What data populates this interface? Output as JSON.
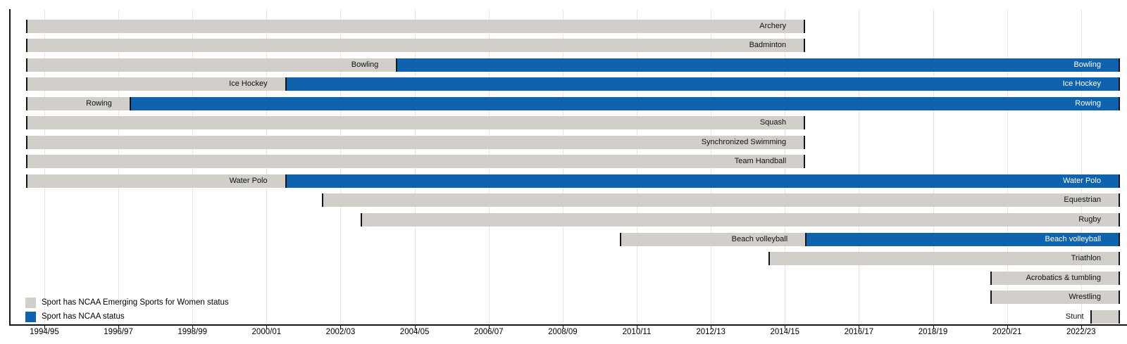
{
  "chart_data": {
    "type": "gantt-timeline",
    "title": "",
    "x_axis": {
      "min_year": 1994.05,
      "max_year": 2024.05,
      "grid": true,
      "ticks": [
        {
          "year": 1995,
          "label": "1994/95"
        },
        {
          "year": 1997,
          "label": "1996/97"
        },
        {
          "year": 1999,
          "label": "1998/99"
        },
        {
          "year": 2001,
          "label": "2000/01"
        },
        {
          "year": 2003,
          "label": "2002/03"
        },
        {
          "year": 2005,
          "label": "2004/05"
        },
        {
          "year": 2007,
          "label": "2006/07"
        },
        {
          "year": 2009,
          "label": "2008/09"
        },
        {
          "year": 2011,
          "label": "2010/11"
        },
        {
          "year": 2013,
          "label": "2012/13"
        },
        {
          "year": 2015,
          "label": "2014/15"
        },
        {
          "year": 2017,
          "label": "2016/17"
        },
        {
          "year": 2019,
          "label": "2018/19"
        },
        {
          "year": 2021,
          "label": "2020/21"
        },
        {
          "year": 2023,
          "label": "2022/23"
        }
      ]
    },
    "colors": {
      "esw": "#d2cfcb",
      "ncaa": "#0e62ae",
      "edge": "#161616",
      "gridline": "#e9e7e4",
      "ncaa_label_text": "#ffffff",
      "esw_label_text": "#111111"
    },
    "legend": [
      {
        "status": "esw",
        "color": "#d2cfcb",
        "label": "Sport has NCAA Emerging Sports for Women status"
      },
      {
        "status": "ncaa",
        "color": "#0e62ae",
        "label": "Sport has NCAA status"
      }
    ],
    "sports": [
      {
        "name": "Archery",
        "segments": [
          {
            "status": "esw",
            "start": 1994.5,
            "end": 2015.55
          }
        ]
      },
      {
        "name": "Badminton",
        "segments": [
          {
            "status": "esw",
            "start": 1994.5,
            "end": 2015.55
          }
        ]
      },
      {
        "name": "Bowling",
        "segments": [
          {
            "status": "esw",
            "start": 1994.5,
            "end": 2004.5
          },
          {
            "status": "ncaa",
            "start": 2004.5,
            "end": 2024.05
          }
        ]
      },
      {
        "name": "Ice Hockey",
        "segments": [
          {
            "status": "esw",
            "start": 1994.5,
            "end": 2001.5
          },
          {
            "status": "ncaa",
            "start": 2001.5,
            "end": 2024.05
          }
        ]
      },
      {
        "name": "Rowing",
        "segments": [
          {
            "status": "esw",
            "start": 1994.5,
            "end": 1997.3
          },
          {
            "status": "ncaa",
            "start": 1997.3,
            "end": 2024.05
          }
        ]
      },
      {
        "name": "Squash",
        "segments": [
          {
            "status": "esw",
            "start": 1994.5,
            "end": 2015.55
          }
        ]
      },
      {
        "name": "Synchronized Swimming",
        "segments": [
          {
            "status": "esw",
            "start": 1994.5,
            "end": 2015.55
          }
        ]
      },
      {
        "name": "Team Handball",
        "segments": [
          {
            "status": "esw",
            "start": 1994.5,
            "end": 2015.55
          }
        ]
      },
      {
        "name": "Water Polo",
        "segments": [
          {
            "status": "esw",
            "start": 1994.5,
            "end": 2001.5
          },
          {
            "status": "ncaa",
            "start": 2001.5,
            "end": 2024.05
          }
        ]
      },
      {
        "name": "Equestrian",
        "segments": [
          {
            "status": "esw",
            "start": 2002.5,
            "end": 2024.05
          }
        ]
      },
      {
        "name": "Rugby",
        "segments": [
          {
            "status": "esw",
            "start": 2003.55,
            "end": 2024.05
          }
        ]
      },
      {
        "name": "Beach volleyball",
        "segments": [
          {
            "status": "esw",
            "start": 2010.55,
            "end": 2015.55
          },
          {
            "status": "ncaa",
            "start": 2015.55,
            "end": 2024.05
          }
        ]
      },
      {
        "name": "Triathlon",
        "segments": [
          {
            "status": "esw",
            "start": 2014.55,
            "end": 2024.05
          }
        ]
      },
      {
        "name": "Acrobatics & tumbling",
        "segments": [
          {
            "status": "esw",
            "start": 2020.55,
            "end": 2024.05
          }
        ]
      },
      {
        "name": "Wrestling",
        "segments": [
          {
            "status": "esw",
            "start": 2020.55,
            "end": 2024.05
          }
        ]
      },
      {
        "name": "Stunt",
        "label_outside": true,
        "segments": [
          {
            "status": "esw",
            "start": 2023.25,
            "end": 2024.05
          }
        ]
      }
    ]
  }
}
